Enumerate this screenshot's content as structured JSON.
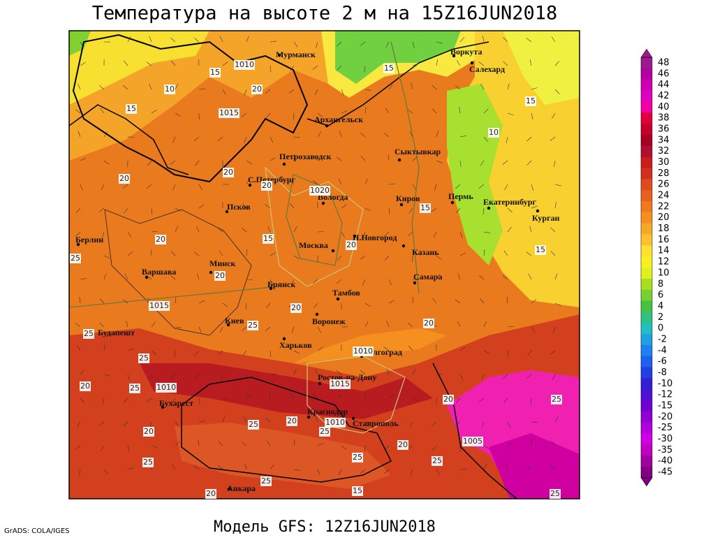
{
  "header": {
    "title": "Температура на высоте 2 м на 15Z16JUN2018"
  },
  "footer": {
    "model": "Модель GFS: 12Z16JUN2018",
    "credit": "GrADS: COLA/IGES"
  },
  "map": {
    "cities": [
      "Мурманск",
      "Воркута",
      "Салехард",
      "Архангельск",
      "Сыктывкар",
      "Петрозаводск",
      "С.Петербург",
      "Вологда",
      "Киров",
      "Пермь",
      "Екатеринбург",
      "Курган",
      "Псков",
      "Берлин",
      "Н.Новгород",
      "Москва",
      "Казань",
      "Минск",
      "Варшава",
      "Самара",
      "Брянск",
      "Тамбов",
      "Воронеж",
      "Киев",
      "Будапешт",
      "Харьков",
      "Волгоград",
      "Ростов-на-Дону",
      "Бухарест",
      "Краснодар",
      "Ставрополь",
      "Анкара"
    ],
    "isotherm_labels": [
      15,
      10,
      20,
      15,
      20,
      20,
      20,
      15,
      20,
      15,
      15,
      10,
      15,
      15,
      20,
      25,
      20,
      20,
      20,
      25,
      25,
      25,
      20,
      25,
      20,
      25,
      20,
      25,
      25,
      20,
      20,
      25,
      25,
      25,
      20,
      15,
      25,
      25
    ],
    "isobar_labels": [
      1010,
      1015,
      1020,
      1015,
      1010,
      1015,
      1010,
      1010,
      1005
    ]
  },
  "legend": {
    "levels": [
      48,
      46,
      44,
      42,
      40,
      38,
      36,
      34,
      32,
      30,
      28,
      26,
      24,
      22,
      20,
      18,
      16,
      14,
      12,
      10,
      8,
      6,
      4,
      2,
      0,
      -2,
      -4,
      -6,
      -8,
      -10,
      -12,
      -15,
      -20,
      -25,
      -30,
      -35,
      -40,
      -45
    ],
    "colors": [
      "#9b1b8f",
      "#b4009f",
      "#cc00b0",
      "#e000c0",
      "#f000a0",
      "#e0003c",
      "#c40028",
      "#a80020",
      "#b01030",
      "#c81e1e",
      "#d03020",
      "#e04a1e",
      "#e86020",
      "#f07820",
      "#f59020",
      "#f8a828",
      "#fcc030",
      "#fde030",
      "#f8f020",
      "#e0f020",
      "#a8e020",
      "#78d030",
      "#48c040",
      "#30c080",
      "#20c0c0",
      "#20a0e0",
      "#2080f0",
      "#2060f0",
      "#2040e0",
      "#3020d0",
      "#5010d0",
      "#7000d0",
      "#9000d0",
      "#b000e0",
      "#d000e0",
      "#c000c0",
      "#a000a0",
      "#800080"
    ]
  }
}
